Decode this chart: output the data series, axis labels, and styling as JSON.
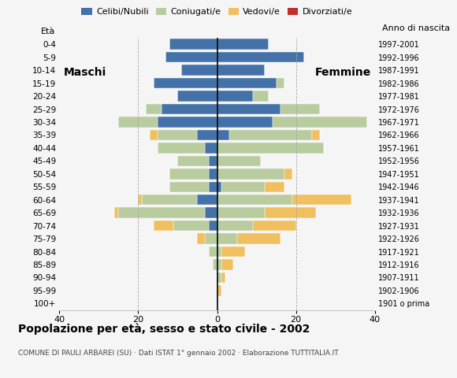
{
  "age_groups": [
    "100+",
    "95-99",
    "90-94",
    "85-89",
    "80-84",
    "75-79",
    "70-74",
    "65-69",
    "60-64",
    "55-59",
    "50-54",
    "45-49",
    "40-44",
    "35-39",
    "30-34",
    "25-29",
    "20-24",
    "15-19",
    "10-14",
    "5-9",
    "0-4"
  ],
  "birth_years": [
    "1901 o prima",
    "1902-1906",
    "1907-1911",
    "1912-1916",
    "1917-1921",
    "1922-1926",
    "1927-1931",
    "1932-1936",
    "1937-1941",
    "1942-1946",
    "1947-1951",
    "1952-1956",
    "1957-1961",
    "1962-1966",
    "1967-1971",
    "1972-1976",
    "1977-1981",
    "1982-1986",
    "1987-1991",
    "1992-1996",
    "1997-2001"
  ],
  "male": {
    "celibi": [
      0,
      0,
      0,
      0,
      0,
      0,
      2,
      3,
      5,
      2,
      2,
      2,
      3,
      5,
      15,
      14,
      10,
      16,
      9,
      13,
      12
    ],
    "coniugati": [
      0,
      0,
      0,
      1,
      2,
      3,
      9,
      22,
      14,
      10,
      10,
      8,
      12,
      10,
      10,
      4,
      0,
      0,
      0,
      0,
      0
    ],
    "vedovi": [
      0,
      0,
      0,
      0,
      0,
      2,
      5,
      1,
      1,
      0,
      0,
      0,
      0,
      2,
      0,
      0,
      0,
      0,
      0,
      0,
      0
    ],
    "divorziati": [
      0,
      0,
      0,
      0,
      0,
      0,
      0,
      0,
      0,
      0,
      0,
      0,
      0,
      0,
      0,
      0,
      0,
      0,
      0,
      0,
      0
    ]
  },
  "female": {
    "nubili": [
      0,
      0,
      0,
      0,
      0,
      0,
      0,
      0,
      0,
      1,
      0,
      0,
      0,
      3,
      14,
      16,
      9,
      15,
      12,
      22,
      13
    ],
    "coniugate": [
      0,
      0,
      1,
      1,
      1,
      5,
      9,
      12,
      19,
      11,
      17,
      11,
      27,
      21,
      24,
      10,
      4,
      2,
      0,
      0,
      0
    ],
    "vedove": [
      0,
      1,
      1,
      3,
      6,
      11,
      11,
      13,
      15,
      5,
      2,
      0,
      0,
      2,
      0,
      0,
      0,
      0,
      0,
      0,
      0
    ],
    "divorziate": [
      0,
      0,
      0,
      0,
      0,
      0,
      0,
      0,
      0,
      0,
      0,
      0,
      0,
      0,
      0,
      0,
      0,
      0,
      0,
      0,
      0
    ]
  },
  "colors": {
    "celibi": "#4472a8",
    "coniugati": "#b8cca0",
    "vedovi": "#f0c060",
    "divorziati": "#c0302a"
  },
  "xlim": 40,
  "title": "Popolazione per età, sesso e stato civile - 2002",
  "subtitle": "COMUNE DI PAULI ARBAREI (SU) · Dati ISTAT 1° gennaio 2002 · Elaborazione TUTTITALIA.IT",
  "legend_labels": [
    "Celibi/Nubili",
    "Coniugati/e",
    "Vedovi/e",
    "Divorziati/e"
  ],
  "eta_label": "Età",
  "anno_label": "Anno di nascita",
  "maschi_label": "Maschi",
  "femmine_label": "Femmine",
  "bg_color": "#f5f5f5",
  "bar_height": 0.82
}
